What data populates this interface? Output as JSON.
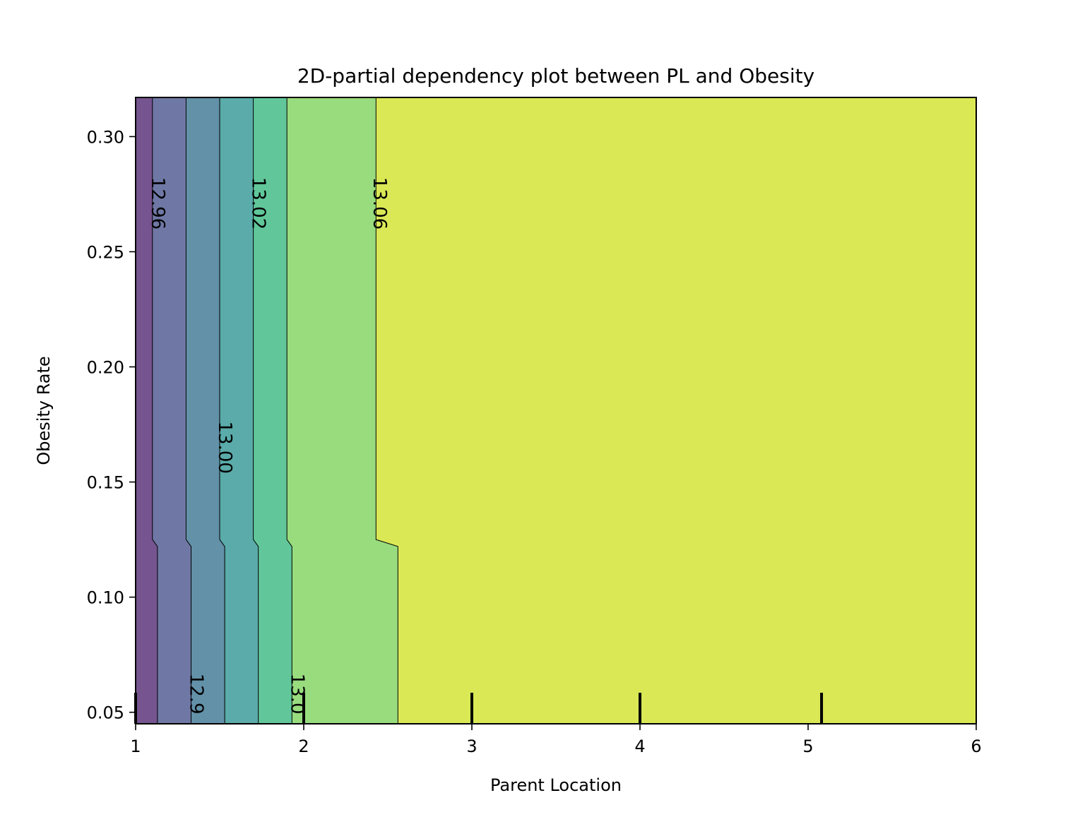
{
  "chart_data": {
    "type": "contour",
    "title": "2D-partial dependency plot between PL and Obesity",
    "xlabel": "Parent Location",
    "ylabel": "Obesity Rate",
    "xlim": [
      1,
      6
    ],
    "ylim": [
      0.045,
      0.317
    ],
    "x_ticks": [
      1,
      2,
      3,
      4,
      5,
      6
    ],
    "x_tick_labels": [
      "1",
      "2",
      "3",
      "4",
      "5",
      "6"
    ],
    "y_ticks": [
      0.05,
      0.1,
      0.15,
      0.2,
      0.25,
      0.3
    ],
    "y_tick_labels": [
      "0.05",
      "0.10",
      "0.15",
      "0.20",
      "0.25",
      "0.30"
    ],
    "kink_y": [
      0.122,
      0.125
    ],
    "bands": [
      {
        "color": "#75548f",
        "x_upper": 1.1,
        "x_lower": 1.13
      },
      {
        "color": "#6f78a5",
        "x_upper": 1.3,
        "x_lower": 1.33
      },
      {
        "color": "#6291a8",
        "x_upper": 1.5,
        "x_lower": 1.53
      },
      {
        "color": "#5aaba9",
        "x_upper": 1.7,
        "x_lower": 1.73
      },
      {
        "color": "#61c79b",
        "x_upper": 1.9,
        "x_lower": 1.93
      },
      {
        "color": "#98dc7e",
        "x_upper": 2.43,
        "x_lower": 2.56
      },
      {
        "color": "#dae856",
        "x_upper": 6,
        "x_lower": 6
      }
    ],
    "contour_labels": [
      {
        "text": "12.96",
        "x": 1.13,
        "y": 0.271
      },
      {
        "text": "13.02",
        "x": 1.73,
        "y": 0.271
      },
      {
        "text": "13.06",
        "x": 2.45,
        "y": 0.271
      },
      {
        "text": "13.00",
        "x": 1.53,
        "y": 0.165
      },
      {
        "text": "12.9",
        "x": 1.36,
        "y": 0.058
      },
      {
        "text": "13.0",
        "x": 1.96,
        "y": 0.058
      }
    ],
    "rug_x": [
      1.0,
      2.0,
      3.0,
      4.0,
      5.08
    ]
  }
}
